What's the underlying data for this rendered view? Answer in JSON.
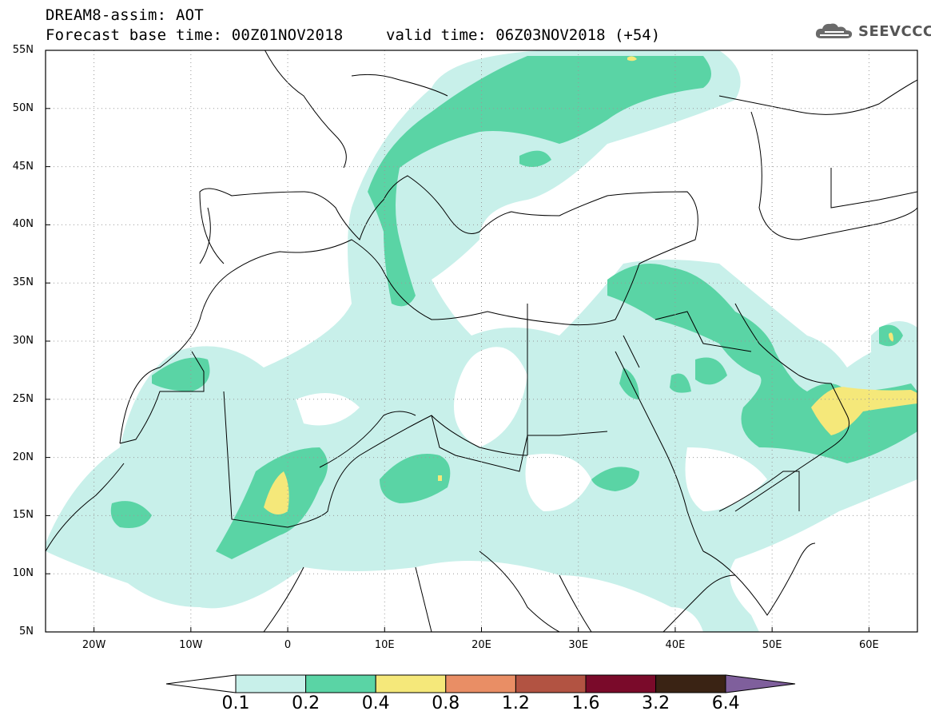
{
  "header": {
    "title_line1": "DREAM8-assim: AOT",
    "title_line2": "Forecast base time: 00Z01NOV2018",
    "valid_time": "valid time: 06Z03NOV2018 (+54)",
    "logo_text": "SEEVCCC",
    "logo_icon": "cloud-icon"
  },
  "map": {
    "lat_labels": [
      "55N",
      "50N",
      "45N",
      "40N",
      "35N",
      "30N",
      "25N",
      "20N",
      "15N",
      "10N",
      "5N"
    ],
    "lon_labels": [
      "20W",
      "10W",
      "0",
      "10E",
      "20E",
      "30E",
      "40E",
      "50E",
      "60E"
    ],
    "lat_range": [
      5,
      55
    ],
    "lon_range": [
      -25,
      65
    ],
    "gridlines": true
  },
  "colorbar": {
    "labels": [
      "0.1",
      "0.2",
      "0.4",
      "0.8",
      "1.2",
      "1.6",
      "3.2",
      "6.4"
    ],
    "colors": [
      "#ffffff",
      "#c8f0ea",
      "#5ad4a5",
      "#f5e87a",
      "#e98e65",
      "#b25342",
      "#7a0a2a",
      "#3a2314",
      "#7f5f9c"
    ]
  },
  "legend_colors": {
    "lightest": "#c8f0ea",
    "teal": "#5ad4a5",
    "yellow": "#f5e87a"
  }
}
